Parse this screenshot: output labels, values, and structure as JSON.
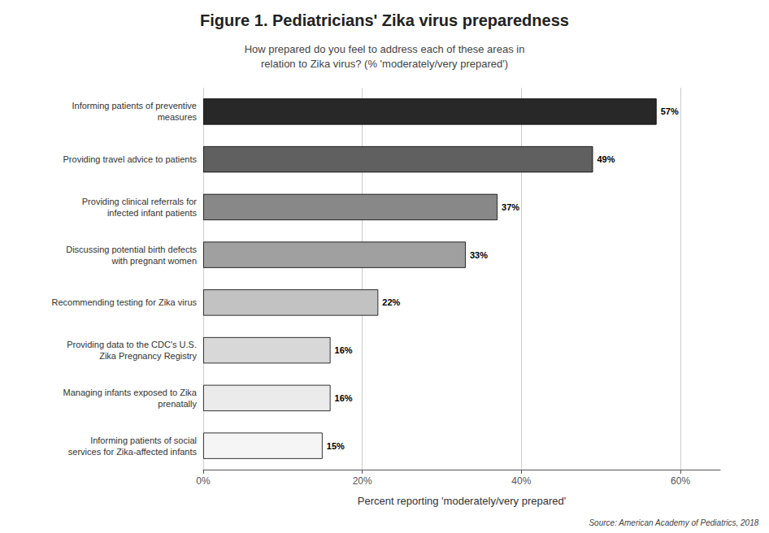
{
  "chart_data": {
    "type": "bar",
    "orientation": "horizontal",
    "title": "Figure 1. Pediatricians' Zika virus preparedness",
    "subtitle": "How prepared do you feel to address each of these areas in\nrelation to Zika virus? (% 'moderately/very prepared')",
    "categories": [
      "Informing patients of social\nservices for Zika-affected infants",
      "Managing infants exposed to Zika\nprenatally",
      "Providing data to the CDC's U.S.\nZika Pregnancy Registry",
      "Recommending testing for Zika virus",
      "Discussing potential birth defects\nwith pregnant women",
      "Providing clinical referrals for\ninfected infant patients",
      "Providing travel advice to patients",
      "Informing patients of preventive\nmeasures"
    ],
    "values": [
      15,
      16,
      16,
      22,
      33,
      37,
      49,
      57
    ],
    "value_labels": [
      "15%",
      "16%",
      "16%",
      "22%",
      "33%",
      "37%",
      "49%",
      "57%"
    ],
    "data_labels": true,
    "colors": [
      "#f5f5f5",
      "#ebebeb",
      "#d8d8d8",
      "#c2c2c2",
      "#a0a0a0",
      "#888888",
      "#606060",
      "#282828"
    ],
    "xlabel": "Percent reporting 'moderately/very prepared'",
    "xlim": [
      0,
      65
    ],
    "xticks": [
      {
        "value": 0,
        "label": "0%"
      },
      {
        "value": 20,
        "label": "20%"
      },
      {
        "value": 40,
        "label": "40%"
      },
      {
        "value": 60,
        "label": "60%"
      }
    ],
    "grid": true,
    "annotations": [
      "Source: American Academy of Pediatrics, 2018"
    ]
  }
}
